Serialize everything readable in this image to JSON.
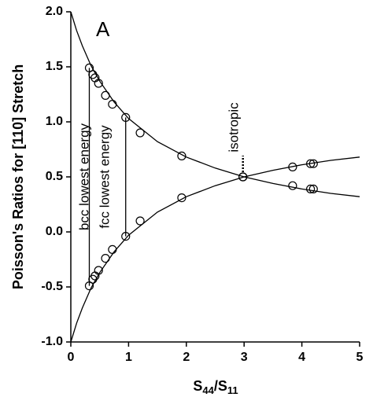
{
  "chart_data": {
    "type": "scatter",
    "panel_label": "A",
    "xlabel": [
      "S",
      "44",
      "/S",
      "11"
    ],
    "ylabel": "Poisson's Ratios for [110] Stretch",
    "xlim": [
      0,
      5
    ],
    "ylim": [
      -1,
      2
    ],
    "xticks": [
      0,
      1,
      2,
      3,
      4,
      5
    ],
    "yticks": [
      {
        "value": -1,
        "label": "-1.0"
      },
      -0.5,
      {
        "value": 0,
        "label": "0.0"
      },
      0.5,
      {
        "value": 1,
        "label": "1.0"
      },
      1.5,
      {
        "value": 2,
        "label": "2.0"
      }
    ],
    "color": "#000000",
    "series": [
      {
        "x": [
          0.32,
          0.38,
          0.42,
          0.48,
          0.6,
          0.72,
          0.95,
          1.2,
          1.92,
          2.98,
          3.84,
          4.15,
          4.2
        ],
        "values": [
          1.49,
          1.43,
          1.4,
          1.35,
          1.24,
          1.16,
          1.04,
          0.9,
          0.69,
          0.5,
          0.42,
          0.39,
          0.39
        ]
      },
      {
        "x": [
          0.32,
          0.38,
          0.42,
          0.48,
          0.6,
          0.72,
          0.95,
          1.2,
          1.92,
          2.98,
          3.84,
          4.15,
          4.2
        ],
        "values": [
          -0.49,
          -0.43,
          -0.4,
          -0.35,
          -0.24,
          -0.16,
          -0.04,
          0.1,
          0.31,
          0.5,
          0.59,
          0.62,
          0.62
        ]
      }
    ],
    "curves": [
      {
        "x": [
          0,
          0.1,
          0.2,
          0.35,
          0.5,
          0.75,
          1,
          1.5,
          2,
          2.5,
          3,
          3.5,
          4,
          4.5,
          5
        ],
        "values": [
          2.0,
          1.83,
          1.69,
          1.51,
          1.37,
          1.18,
          1.03,
          0.82,
          0.68,
          0.58,
          0.5,
          0.44,
          0.39,
          0.35,
          0.32
        ]
      },
      {
        "x": [
          0,
          0.1,
          0.2,
          0.35,
          0.5,
          0.75,
          1,
          1.5,
          2,
          2.5,
          3,
          3.5,
          4,
          4.5,
          5
        ],
        "values": [
          -1.0,
          -0.83,
          -0.69,
          -0.51,
          -0.37,
          -0.18,
          -0.03,
          0.18,
          0.32,
          0.42,
          0.5,
          0.56,
          0.61,
          0.65,
          0.68
        ]
      }
    ],
    "annotations": [
      "bcc lowest energy",
      "fcc lowest energy",
      "isotropic"
    ]
  }
}
